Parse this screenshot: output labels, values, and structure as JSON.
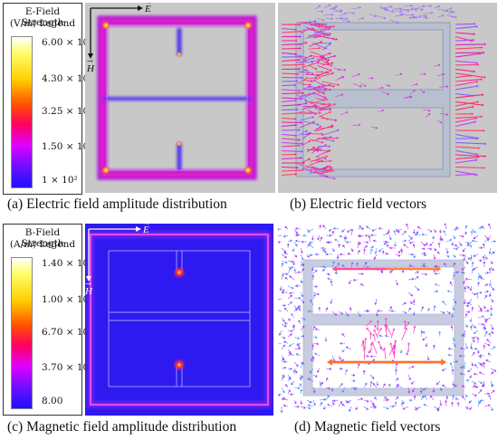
{
  "panel_a": {
    "legend": {
      "title_line1": "E-Field Strength",
      "title_line2": "(V/m)   Legend",
      "ticks": [
        "6.00 × 10⁵",
        "4.30 × 10⁵",
        "3.25 × 10⁵",
        "1.50 × 10⁵",
        "1 × 10²"
      ]
    },
    "axis_e": "E",
    "axis_h": "H",
    "caption": "(a) Electric field amplitude distribution"
  },
  "panel_b": {
    "caption": "(b) Electric field vectors"
  },
  "panel_c": {
    "legend": {
      "title_line1": "B-Field Strength",
      "title_line2": "(A/m)   Legend",
      "ticks": [
        "1.40 × 10⁴",
        "1.00 × 10⁴",
        "6.70 × 10³",
        "3.70 × 10³",
        "8.00"
      ]
    },
    "axis_e": "E",
    "axis_h": "H",
    "caption": "(c) Magnetic field amplitude distribution"
  },
  "panel_d": {
    "caption": "(d) Magnetic field vectors"
  },
  "colors": {
    "colormap": [
      "#ffffff",
      "#ffff40",
      "#ffb000",
      "#ff2000",
      "#ff00a0",
      "#9000ff",
      "#2a10ff"
    ],
    "gray_bg": "#c8c8c8",
    "blue_bg": "#2e19f0"
  }
}
